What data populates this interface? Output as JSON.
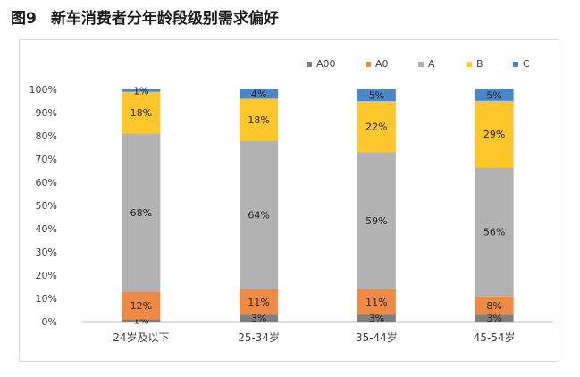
{
  "figure": {
    "label": "图9",
    "title": "新车消费者分年龄段级别需求偏好"
  },
  "chart_data": {
    "type": "bar",
    "stacked": true,
    "percent": true,
    "categories": [
      "24岁及以下",
      "25-34岁",
      "35-44岁",
      "45-54岁"
    ],
    "series": [
      {
        "name": "A00",
        "color": "#7f7f7f",
        "values": [
          1,
          3,
          3,
          3
        ],
        "labels": [
          "1%",
          "3%",
          "3%",
          "3%"
        ]
      },
      {
        "name": "A0",
        "color": "#ed8a45",
        "values": [
          12,
          11,
          11,
          8
        ],
        "labels": [
          "12%",
          "11%",
          "11%",
          "8%"
        ]
      },
      {
        "name": "A",
        "color": "#b2b2b2",
        "values": [
          68,
          64,
          59,
          56
        ],
        "labels": [
          "68%",
          "64%",
          "59%",
          "56%"
        ]
      },
      {
        "name": "B",
        "color": "#ffc72c",
        "values": [
          18,
          18,
          22,
          29
        ],
        "labels": [
          "18%",
          "18%",
          "22%",
          "29%"
        ]
      },
      {
        "name": "C",
        "color": "#4a86c8",
        "values": [
          1,
          4,
          5,
          5
        ],
        "labels": [
          "1%",
          "4%",
          "5%",
          "5%"
        ]
      }
    ],
    "ylim": [
      0,
      100
    ],
    "yticks": [
      "0%",
      "10%",
      "20%",
      "30%",
      "40%",
      "50%",
      "60%",
      "70%",
      "80%",
      "90%",
      "100%"
    ],
    "legend_position": "top-right",
    "grid": false
  }
}
